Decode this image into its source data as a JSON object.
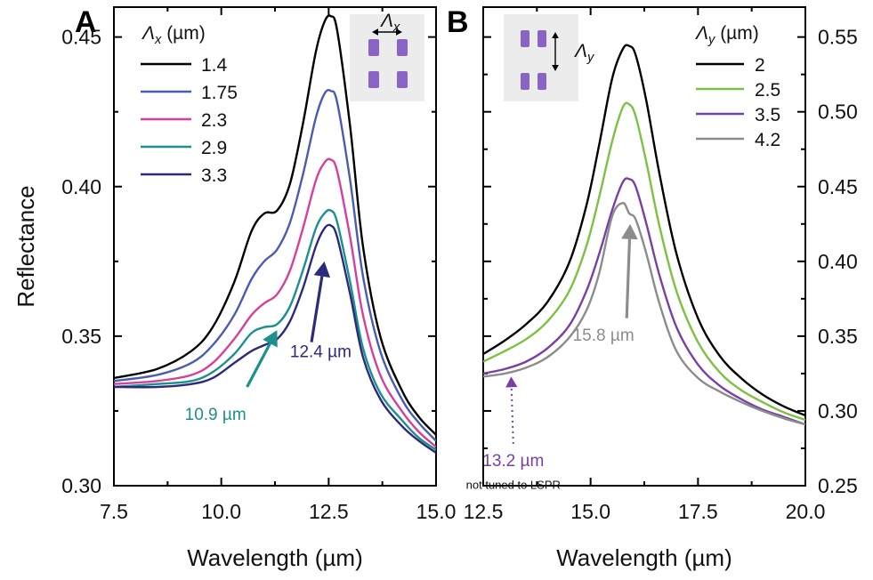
{
  "chart_data": [
    {
      "panel": "A",
      "type": "line",
      "xlabel": "Wavelength (µm)",
      "ylabel": "Reflectance",
      "xlim": [
        7.5,
        15.0
      ],
      "ylim": [
        0.3,
        0.46
      ],
      "xticks": [
        7.5,
        10.0,
        12.5,
        15.0
      ],
      "xtick_labels": [
        "7.5",
        "10.0",
        "12.5",
        "15.0"
      ],
      "yticks": [
        0.3,
        0.35,
        0.4,
        0.45
      ],
      "ytick_labels": [
        "0.30",
        "0.35",
        "0.40",
        "0.45"
      ],
      "legend_title_symbol": "Λ",
      "legend_title_sub": "x",
      "legend_title_unit": "(µm)",
      "legend_position": "top-left",
      "inset_label_symbol": "Λ",
      "inset_label_sub": "x",
      "series": [
        {
          "name": "1.4",
          "color": "#000000",
          "x": [
            7.5,
            8.5,
            9.3,
            9.8,
            10.3,
            10.7,
            11.0,
            11.3,
            11.6,
            11.9,
            12.2,
            12.4,
            12.55,
            12.7,
            13.0,
            13.3,
            13.7,
            14.2,
            14.6,
            15.0
          ],
          "y": [
            0.336,
            0.339,
            0.345,
            0.353,
            0.368,
            0.385,
            0.391,
            0.392,
            0.401,
            0.421,
            0.445,
            0.455,
            0.457,
            0.452,
            0.42,
            0.38,
            0.35,
            0.332,
            0.323,
            0.317
          ]
        },
        {
          "name": "1.75",
          "color": "#4a5bb5",
          "x": [
            7.5,
            8.5,
            9.3,
            9.8,
            10.3,
            10.7,
            11.0,
            11.3,
            11.6,
            11.9,
            12.2,
            12.4,
            12.55,
            12.7,
            13.0,
            13.3,
            13.7,
            14.2,
            14.6,
            15.0
          ],
          "y": [
            0.335,
            0.337,
            0.341,
            0.347,
            0.357,
            0.369,
            0.375,
            0.379,
            0.388,
            0.404,
            0.423,
            0.431,
            0.432,
            0.428,
            0.402,
            0.37,
            0.345,
            0.329,
            0.321,
            0.315
          ]
        },
        {
          "name": "2.3",
          "color": "#d6409a",
          "x": [
            7.5,
            8.5,
            9.3,
            9.8,
            10.3,
            10.7,
            11.0,
            11.3,
            11.6,
            11.9,
            12.2,
            12.4,
            12.55,
            12.7,
            13.0,
            13.3,
            13.7,
            14.2,
            14.6,
            15.0
          ],
          "y": [
            0.334,
            0.335,
            0.337,
            0.341,
            0.349,
            0.357,
            0.361,
            0.364,
            0.372,
            0.386,
            0.402,
            0.408,
            0.409,
            0.405,
            0.383,
            0.357,
            0.337,
            0.325,
            0.318,
            0.313
          ]
        },
        {
          "name": "2.9",
          "color": "#1d8f8c",
          "x": [
            7.5,
            8.5,
            9.3,
            9.8,
            10.3,
            10.7,
            11.0,
            11.3,
            11.6,
            11.9,
            12.2,
            12.4,
            12.55,
            12.7,
            13.0,
            13.3,
            13.7,
            14.2,
            14.6,
            15.0
          ],
          "y": [
            0.333,
            0.334,
            0.335,
            0.338,
            0.344,
            0.351,
            0.353,
            0.354,
            0.36,
            0.372,
            0.386,
            0.391,
            0.392,
            0.388,
            0.368,
            0.346,
            0.331,
            0.322,
            0.316,
            0.312
          ]
        },
        {
          "name": "3.3",
          "color": "#2c2a7c",
          "x": [
            7.5,
            8.5,
            9.3,
            9.8,
            10.3,
            10.7,
            11.0,
            11.3,
            11.6,
            11.9,
            12.2,
            12.4,
            12.55,
            12.7,
            13.0,
            13.3,
            13.7,
            14.2,
            14.6,
            15.0
          ],
          "y": [
            0.333,
            0.333,
            0.334,
            0.336,
            0.341,
            0.345,
            0.347,
            0.349,
            0.355,
            0.366,
            0.38,
            0.386,
            0.387,
            0.383,
            0.364,
            0.343,
            0.329,
            0.32,
            0.315,
            0.311
          ]
        }
      ],
      "annotations": [
        {
          "text": "12.4 µm",
          "color": "#2c2a7c",
          "arrow_to": [
            12.4,
            0.375
          ],
          "arrow_from": [
            12.1,
            0.348
          ],
          "text_at": [
            11.6,
            0.343
          ]
        },
        {
          "text": "10.9 µm",
          "color": "#1d8f8c",
          "arrow_to": [
            11.3,
            0.352
          ],
          "arrow_from": [
            10.6,
            0.333
          ],
          "text_at": [
            9.15,
            0.322
          ]
        }
      ]
    },
    {
      "panel": "B",
      "type": "line",
      "xlabel": "Wavelength (µm)",
      "ylabel": "",
      "xlim": [
        12.5,
        20.0
      ],
      "ylim": [
        0.25,
        0.57
      ],
      "xticks": [
        12.5,
        15.0,
        17.5,
        20.0
      ],
      "xtick_labels": [
        "12.5",
        "15.0",
        "17.5",
        "20.0"
      ],
      "yticks": [
        0.25,
        0.3,
        0.35,
        0.4,
        0.45,
        0.5,
        0.55
      ],
      "ytick_labels": [
        "0.25",
        "0.30",
        "0.35",
        "0.40",
        "0.45",
        "0.50",
        "0.55"
      ],
      "legend_title_symbol": "Λ",
      "legend_title_sub": "y",
      "legend_title_unit": "(µm)",
      "legend_position": "top-right",
      "inset_label_symbol": "Λ",
      "inset_label_sub": "y",
      "series": [
        {
          "name": "2",
          "color": "#000000",
          "x": [
            12.5,
            13.0,
            13.5,
            14.0,
            14.5,
            14.9,
            15.2,
            15.5,
            15.75,
            15.9,
            16.05,
            16.3,
            16.6,
            17.0,
            17.5,
            18.0,
            18.5,
            19.0,
            19.5,
            20.0
          ],
          "y": [
            0.338,
            0.347,
            0.358,
            0.373,
            0.399,
            0.437,
            0.478,
            0.522,
            0.542,
            0.544,
            0.538,
            0.507,
            0.459,
            0.405,
            0.362,
            0.337,
            0.322,
            0.311,
            0.303,
            0.297
          ]
        },
        {
          "name": "2.5",
          "color": "#7cc242",
          "x": [
            12.5,
            13.0,
            13.5,
            14.0,
            14.5,
            14.9,
            15.2,
            15.5,
            15.75,
            15.9,
            16.05,
            16.3,
            16.6,
            17.0,
            17.5,
            18.0,
            18.5,
            19.0,
            19.5,
            20.0
          ],
          "y": [
            0.333,
            0.34,
            0.348,
            0.36,
            0.38,
            0.41,
            0.443,
            0.48,
            0.503,
            0.505,
            0.497,
            0.466,
            0.424,
            0.38,
            0.346,
            0.326,
            0.314,
            0.306,
            0.299,
            0.294
          ]
        },
        {
          "name": "3.5",
          "color": "#7a3fa5",
          "x": [
            12.5,
            13.0,
            13.5,
            14.0,
            14.5,
            14.9,
            15.2,
            15.5,
            15.75,
            15.9,
            16.05,
            16.3,
            16.6,
            17.0,
            17.5,
            18.0,
            18.5,
            19.0,
            19.5,
            20.0
          ],
          "y": [
            0.325,
            0.328,
            0.333,
            0.342,
            0.357,
            0.38,
            0.405,
            0.434,
            0.453,
            0.455,
            0.45,
            0.425,
            0.391,
            0.356,
            0.331,
            0.317,
            0.308,
            0.301,
            0.296,
            0.291
          ]
        },
        {
          "name": "4.2",
          "color": "#8c8c8c",
          "x": [
            12.5,
            13.0,
            13.5,
            14.0,
            14.5,
            14.9,
            15.2,
            15.5,
            15.75,
            15.9,
            16.05,
            16.3,
            16.6,
            17.0,
            17.5,
            18.0,
            18.5,
            19.0,
            19.5,
            20.0
          ],
          "y": [
            0.323,
            0.325,
            0.329,
            0.336,
            0.349,
            0.367,
            0.392,
            0.43,
            0.439,
            0.432,
            0.428,
            0.405,
            0.372,
            0.34,
            0.322,
            0.313,
            0.306,
            0.3,
            0.295,
            0.291
          ]
        }
      ],
      "annotations": [
        {
          "text": "15.8 µm",
          "color": "#8c8c8c",
          "arrow_to": [
            15.92,
            0.425
          ],
          "arrow_from": [
            15.84,
            0.362
          ],
          "text_at": [
            15.3,
            0.347
          ]
        },
        {
          "text": "13.2 µm",
          "color": "#7a3fa5",
          "arrow_to": [
            13.15,
            0.323
          ],
          "arrow_from": [
            13.2,
            0.278
          ],
          "text_at": [
            13.2,
            0.263
          ]
        },
        {
          "text": "not tuned to LSPR",
          "color": "#111111",
          "text_at": [
            13.2,
            0.248
          ]
        }
      ]
    }
  ]
}
